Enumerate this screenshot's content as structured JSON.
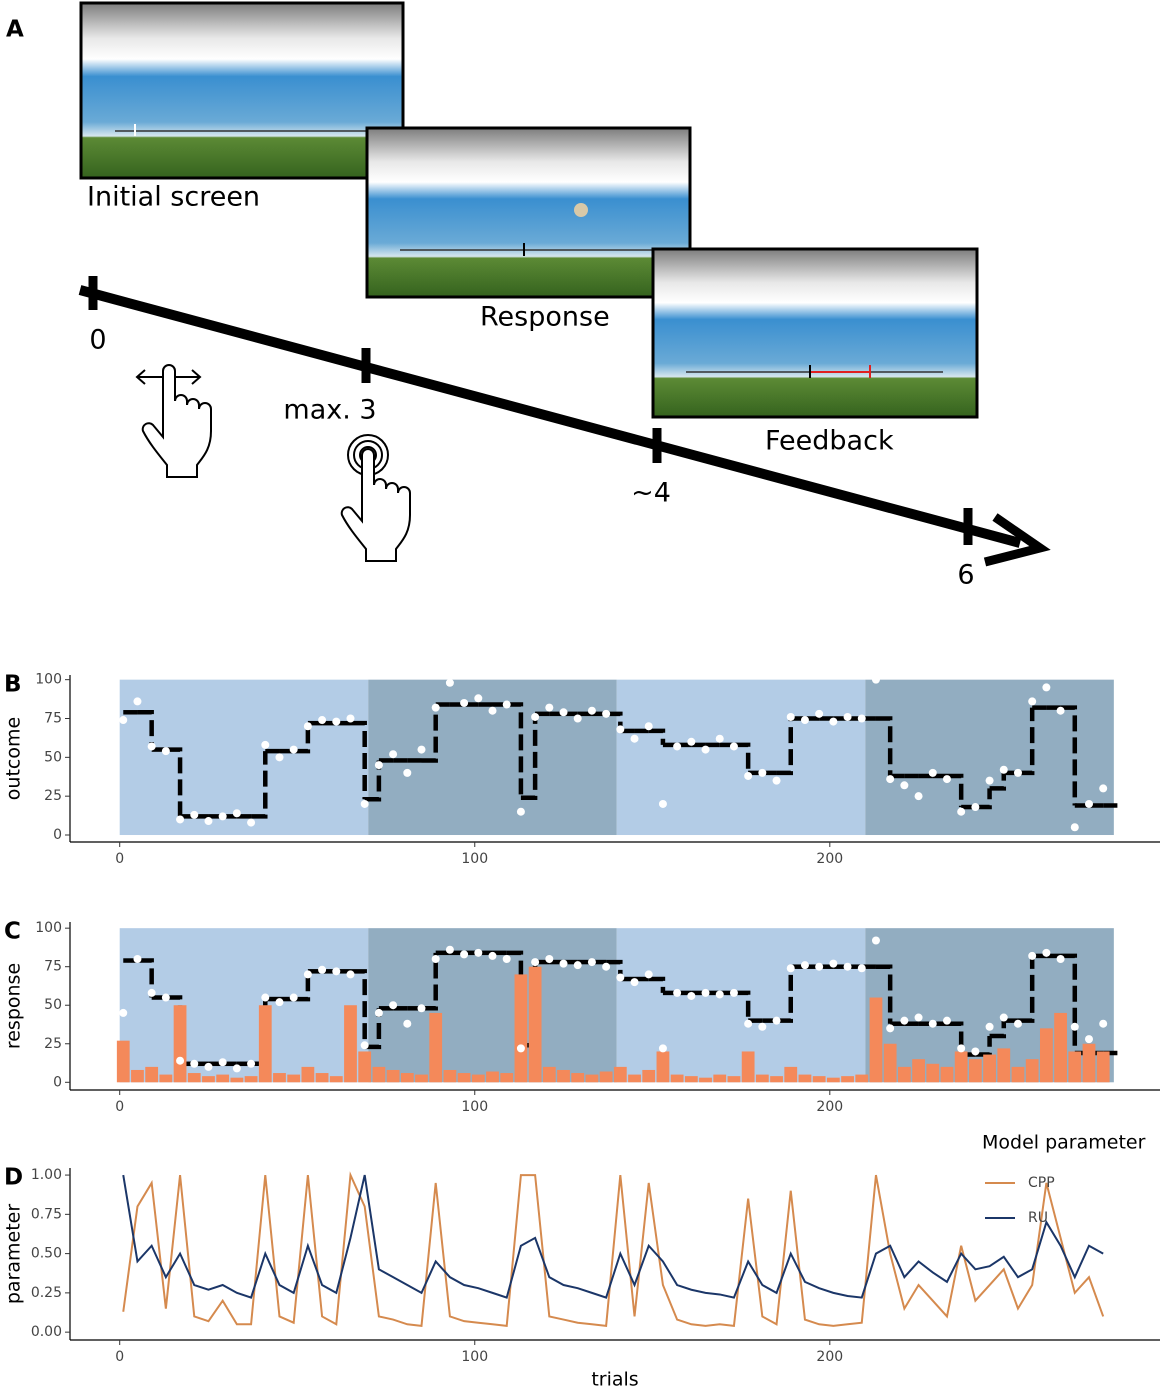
{
  "diagram": {
    "panel_label": "A",
    "screens": [
      "Initial screen",
      "Response",
      "Feedback"
    ],
    "times": [
      "0",
      "max. 3",
      "~4",
      "6"
    ]
  },
  "chart_data": [
    {
      "type": "scatter",
      "panel_label": "B",
      "ylabel": "outcome",
      "x": [
        1,
        5,
        9,
        13,
        17,
        21,
        25,
        29,
        33,
        37,
        41,
        45,
        49,
        53,
        57,
        61,
        65,
        69,
        73,
        77,
        81,
        85,
        89,
        93,
        97,
        101,
        105,
        109,
        113,
        117,
        121,
        125,
        129,
        133,
        137,
        141,
        145,
        149,
        153,
        157,
        161,
        165,
        169,
        173,
        177,
        181,
        185,
        189,
        193,
        197,
        201,
        205,
        209,
        213,
        217,
        221,
        225,
        229,
        233,
        237,
        241,
        245,
        249,
        253,
        257,
        261,
        265,
        269,
        273,
        277
      ],
      "series": [
        {
          "mark": "step",
          "color": "#000000",
          "values": [
            79,
            79,
            55,
            55,
            12,
            12,
            12,
            12,
            12,
            12,
            54,
            54,
            54,
            72,
            72,
            72,
            72,
            23,
            48,
            48,
            48,
            48,
            84,
            84,
            84,
            84,
            84,
            84,
            24,
            78,
            78,
            78,
            78,
            78,
            78,
            67,
            67,
            67,
            58,
            58,
            58,
            58,
            58,
            58,
            40,
            40,
            40,
            75,
            75,
            75,
            75,
            75,
            75,
            75,
            38,
            38,
            38,
            38,
            38,
            18,
            18,
            30,
            40,
            40,
            82,
            82,
            82,
            19,
            19,
            19
          ]
        },
        {
          "mark": "point",
          "color": "#ffffff",
          "values": [
            74,
            86,
            57,
            54,
            10,
            13,
            9,
            12,
            14,
            8,
            58,
            50,
            55,
            70,
            74,
            73,
            75,
            20,
            45,
            52,
            40,
            55,
            82,
            98,
            85,
            88,
            80,
            84,
            15,
            76,
            82,
            79,
            75,
            80,
            78,
            68,
            62,
            70,
            20,
            57,
            60,
            55,
            62,
            57,
            38,
            40,
            35,
            76,
            74,
            78,
            73,
            76,
            75,
            100,
            36,
            32,
            25,
            40,
            36,
            15,
            18,
            35,
            42,
            40,
            86,
            95,
            80,
            5,
            20,
            30
          ]
        }
      ],
      "bands": [
        {
          "xlim": [
            0,
            70
          ],
          "color": "#b3cce6"
        },
        {
          "xlim": [
            70,
            140
          ],
          "color": "#92adc1"
        },
        {
          "xlim": [
            140,
            210
          ],
          "color": "#b3cce6"
        },
        {
          "xlim": [
            210,
            280
          ],
          "color": "#92adc1"
        }
      ],
      "band_ylim": [
        0,
        100
      ],
      "xlim": [
        -14,
        293
      ],
      "ylim": [
        -4.5,
        103
      ],
      "xticks": [
        0,
        100,
        200
      ],
      "yticks": [
        0,
        25,
        50,
        75,
        100
      ]
    },
    {
      "type": "scatter",
      "panel_label": "C",
      "ylabel": "response",
      "x": [
        1,
        5,
        9,
        13,
        17,
        21,
        25,
        29,
        33,
        37,
        41,
        45,
        49,
        53,
        57,
        61,
        65,
        69,
        73,
        77,
        81,
        85,
        89,
        93,
        97,
        101,
        105,
        109,
        113,
        117,
        121,
        125,
        129,
        133,
        137,
        141,
        145,
        149,
        153,
        157,
        161,
        165,
        169,
        173,
        177,
        181,
        185,
        189,
        193,
        197,
        201,
        205,
        209,
        213,
        217,
        221,
        225,
        229,
        233,
        237,
        241,
        245,
        249,
        253,
        257,
        261,
        265,
        269,
        273,
        277
      ],
      "series": [
        {
          "mark": "step",
          "color": "#000000",
          "values": [
            79,
            79,
            55,
            55,
            12,
            12,
            12,
            12,
            12,
            12,
            54,
            54,
            54,
            72,
            72,
            72,
            72,
            23,
            48,
            48,
            48,
            48,
            84,
            84,
            84,
            84,
            84,
            84,
            24,
            78,
            78,
            78,
            78,
            78,
            78,
            67,
            67,
            67,
            58,
            58,
            58,
            58,
            58,
            58,
            40,
            40,
            40,
            75,
            75,
            75,
            75,
            75,
            75,
            75,
            38,
            38,
            38,
            38,
            38,
            18,
            18,
            30,
            40,
            40,
            82,
            82,
            82,
            19,
            19,
            19
          ]
        },
        {
          "mark": "bar",
          "color": "#f4895a",
          "values": [
            27,
            8,
            10,
            5,
            50,
            6,
            4,
            5,
            3,
            4,
            50,
            6,
            5,
            10,
            6,
            4,
            50,
            20,
            10,
            8,
            6,
            5,
            45,
            8,
            6,
            5,
            7,
            6,
            70,
            75,
            10,
            8,
            6,
            5,
            7,
            10,
            5,
            8,
            20,
            5,
            4,
            3,
            5,
            4,
            20,
            5,
            4,
            10,
            5,
            4,
            3,
            4,
            5,
            55,
            25,
            10,
            15,
            12,
            10,
            20,
            15,
            18,
            22,
            10,
            15,
            35,
            45,
            20,
            25,
            20
          ]
        },
        {
          "mark": "point",
          "color": "#ffffff",
          "values": [
            45,
            80,
            58,
            55,
            14,
            12,
            10,
            13,
            9,
            12,
            55,
            52,
            55,
            70,
            73,
            72,
            70,
            24,
            45,
            50,
            38,
            48,
            80,
            86,
            83,
            84,
            82,
            80,
            22,
            78,
            80,
            77,
            76,
            78,
            75,
            68,
            65,
            70,
            22,
            58,
            56,
            58,
            57,
            58,
            38,
            36,
            40,
            74,
            76,
            75,
            77,
            75,
            74,
            92,
            35,
            40,
            42,
            38,
            40,
            22,
            20,
            36,
            42,
            38,
            82,
            84,
            80,
            36,
            28,
            38
          ]
        }
      ],
      "bands": [
        {
          "xlim": [
            0,
            70
          ],
          "color": "#b3cce6"
        },
        {
          "xlim": [
            70,
            140
          ],
          "color": "#92adc1"
        },
        {
          "xlim": [
            140,
            210
          ],
          "color": "#b3cce6"
        },
        {
          "xlim": [
            210,
            280
          ],
          "color": "#92adc1"
        }
      ],
      "band_ylim": [
        0,
        100
      ],
      "xlim": [
        -14,
        293
      ],
      "ylim": [
        -5,
        104
      ],
      "xticks": [
        0,
        100,
        200
      ],
      "yticks": [
        0,
        25,
        50,
        75,
        100
      ]
    },
    {
      "type": "line",
      "panel_label": "D",
      "ylabel": "parameter",
      "xlabel": "trials",
      "legend_title": "Model parameter",
      "x": [
        1,
        5,
        9,
        13,
        17,
        21,
        25,
        29,
        33,
        37,
        41,
        45,
        49,
        53,
        57,
        61,
        65,
        69,
        73,
        77,
        81,
        85,
        89,
        93,
        97,
        101,
        105,
        109,
        113,
        117,
        121,
        125,
        129,
        133,
        137,
        141,
        145,
        149,
        153,
        157,
        161,
        165,
        169,
        173,
        177,
        181,
        185,
        189,
        193,
        197,
        201,
        205,
        209,
        213,
        217,
        221,
        225,
        229,
        233,
        237,
        241,
        245,
        249,
        253,
        257,
        261,
        265,
        269,
        273,
        277
      ],
      "series": [
        {
          "name": "CPP",
          "color": "#d58a4e",
          "values": [
            0.13,
            0.8,
            0.95,
            0.15,
            1.0,
            0.1,
            0.07,
            0.2,
            0.05,
            0.05,
            1.0,
            0.1,
            0.06,
            1.0,
            0.1,
            0.05,
            1.0,
            0.8,
            0.1,
            0.08,
            0.05,
            0.04,
            0.95,
            0.1,
            0.07,
            0.06,
            0.05,
            0.04,
            1.0,
            1.0,
            0.1,
            0.08,
            0.06,
            0.05,
            0.04,
            1.0,
            0.1,
            0.95,
            0.3,
            0.08,
            0.05,
            0.04,
            0.05,
            0.04,
            0.85,
            0.1,
            0.05,
            0.9,
            0.08,
            0.05,
            0.04,
            0.05,
            0.06,
            1.0,
            0.5,
            0.15,
            0.3,
            0.2,
            0.1,
            0.55,
            0.2,
            0.3,
            0.4,
            0.15,
            0.3,
            0.95,
            0.6,
            0.25,
            0.35,
            0.1
          ]
        },
        {
          "name": "RU",
          "color": "#1b3668",
          "values": [
            1.0,
            0.45,
            0.55,
            0.35,
            0.5,
            0.3,
            0.27,
            0.3,
            0.25,
            0.22,
            0.5,
            0.3,
            0.25,
            0.55,
            0.3,
            0.25,
            0.6,
            1.0,
            0.4,
            0.35,
            0.3,
            0.25,
            0.45,
            0.35,
            0.3,
            0.28,
            0.25,
            0.22,
            0.55,
            0.6,
            0.35,
            0.3,
            0.28,
            0.25,
            0.22,
            0.5,
            0.3,
            0.55,
            0.45,
            0.3,
            0.27,
            0.25,
            0.24,
            0.22,
            0.45,
            0.3,
            0.25,
            0.5,
            0.32,
            0.28,
            0.25,
            0.23,
            0.22,
            0.5,
            0.55,
            0.35,
            0.45,
            0.38,
            0.32,
            0.5,
            0.4,
            0.42,
            0.48,
            0.35,
            0.4,
            0.7,
            0.55,
            0.35,
            0.55,
            0.5
          ]
        }
      ],
      "xlim": [
        -14,
        293
      ],
      "ylim": [
        -0.05,
        1.045
      ],
      "xticks": [
        0,
        100,
        200
      ],
      "yticks": [
        {
          "value": 0,
          "label": "0.00"
        },
        {
          "value": 0.25,
          "label": "0.25"
        },
        {
          "value": 0.5,
          "label": "0.50"
        },
        {
          "value": 0.75,
          "label": "0.75"
        },
        {
          "value": 1,
          "label": "1.00"
        }
      ]
    }
  ]
}
